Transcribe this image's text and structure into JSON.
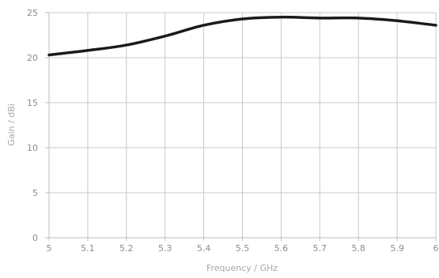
{
  "chart_data": {
    "type": "line",
    "title": "",
    "xlabel": "Frequency / GHz",
    "ylabel": "Gain / dBi",
    "xlim": [
      5,
      6
    ],
    "ylim": [
      0,
      25
    ],
    "x_ticks": [
      "5",
      "5.1",
      "5.2",
      "5.3",
      "5.4",
      "5.5",
      "5.6",
      "5.7",
      "5.8",
      "5.9",
      "6"
    ],
    "y_ticks": [
      "0",
      "5",
      "10",
      "15",
      "20",
      "25"
    ],
    "grid": true,
    "series": [
      {
        "color": "#1a1a1a",
        "x": [
          5.0,
          5.1,
          5.2,
          5.3,
          5.4,
          5.5,
          5.6,
          5.7,
          5.8,
          5.9,
          6.0
        ],
        "y": [
          20.3,
          20.8,
          21.4,
          22.4,
          23.6,
          24.3,
          24.5,
          24.4,
          24.4,
          24.1,
          23.6
        ]
      }
    ]
  }
}
